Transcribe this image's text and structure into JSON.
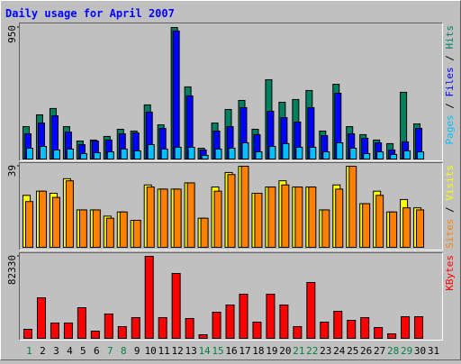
{
  "chart_data": [
    {
      "type": "bar",
      "title": "Daily usage for April 2007",
      "ylim": [
        0,
        950
      ],
      "yticks": [
        950
      ],
      "legend_separator": " / ",
      "series": [
        {
          "name": "Hits",
          "color": "#008060",
          "values": [
            234,
            319,
            365,
            234,
            130,
            137,
            163,
            215,
            202,
            391,
            247,
            950,
            521,
            78,
            260,
            358,
            423,
            215,
            573,
            410,
            430,
            495,
            202,
            540,
            234,
            176,
            137,
            111,
            482,
            254,
            0
          ]
        },
        {
          "name": "Files",
          "color": "#0000ff",
          "values": [
            182,
            260,
            312,
            195,
            104,
            130,
            137,
            182,
            189,
            339,
            221,
            925,
            456,
            65,
            202,
            234,
            371,
            176,
            345,
            299,
            267,
            371,
            169,
            475,
            182,
            150,
            117,
            65,
            124,
            221,
            0
          ]
        },
        {
          "name": "Pages",
          "color": "#00c0ff",
          "values": [
            78,
            91,
            65,
            72,
            39,
            46,
            52,
            72,
            59,
            104,
            72,
            85,
            85,
            26,
            72,
            78,
            117,
            52,
            91,
            111,
            85,
            85,
            52,
            117,
            78,
            39,
            52,
            33,
            59,
            52,
            0
          ]
        }
      ]
    },
    {
      "type": "bar",
      "ylim": [
        0,
        39
      ],
      "yticks": [
        39
      ],
      "legend_separator": " / ",
      "series": [
        {
          "name": "Visits",
          "color": "#ffff00",
          "values": [
            25,
            27,
            26,
            33,
            18,
            18,
            15,
            17,
            13,
            30,
            28,
            28,
            31,
            14,
            29,
            36,
            39,
            26,
            29,
            32,
            29,
            29,
            18,
            30,
            39,
            21,
            27,
            17,
            23,
            19,
            0
          ]
        },
        {
          "name": "Sites",
          "color": "#ff8000",
          "values": [
            22,
            27,
            24,
            32,
            18,
            18,
            14,
            17,
            13,
            29,
            28,
            28,
            31,
            14,
            27,
            35,
            39,
            26,
            29,
            30,
            29,
            29,
            18,
            28,
            39,
            21,
            25,
            17,
            19,
            18,
            0
          ]
        }
      ]
    },
    {
      "type": "bar",
      "ylim": [
        0,
        82330
      ],
      "yticks": [
        82330
      ],
      "categories": [
        "1",
        "2",
        "3",
        "4",
        "5",
        "6",
        "7",
        "8",
        "9",
        "10",
        "11",
        "12",
        "13",
        "14",
        "15",
        "16",
        "17",
        "18",
        "19",
        "20",
        "21",
        "22",
        "23",
        "24",
        "25",
        "26",
        "27",
        "28",
        "29",
        "30",
        "31"
      ],
      "category_colors": [
        "#008040",
        "#000000",
        "#000000",
        "#000000",
        "#000000",
        "#000000",
        "#008040",
        "#008040",
        "#000000",
        "#000000",
        "#000000",
        "#000000",
        "#000000",
        "#008040",
        "#008040",
        "#000000",
        "#000000",
        "#000000",
        "#000000",
        "#000000",
        "#008040",
        "#008040",
        "#000000",
        "#000000",
        "#000000",
        "#000000",
        "#000000",
        "#008040",
        "#008040",
        "#000000",
        "#000000"
      ],
      "series": [
        {
          "name": "KBytes",
          "color": "#ff0000",
          "values": [
            9050,
            40710,
            15380,
            15380,
            30760,
            7240,
            24430,
            11760,
            20810,
            82330,
            20810,
            65140,
            19900,
            3620,
            26240,
            33480,
            44330,
            16280,
            44330,
            33480,
            11760,
            56090,
            16280,
            27140,
            18090,
            20810,
            10860,
            4520,
            21710,
            21710,
            0
          ]
        }
      ]
    }
  ]
}
